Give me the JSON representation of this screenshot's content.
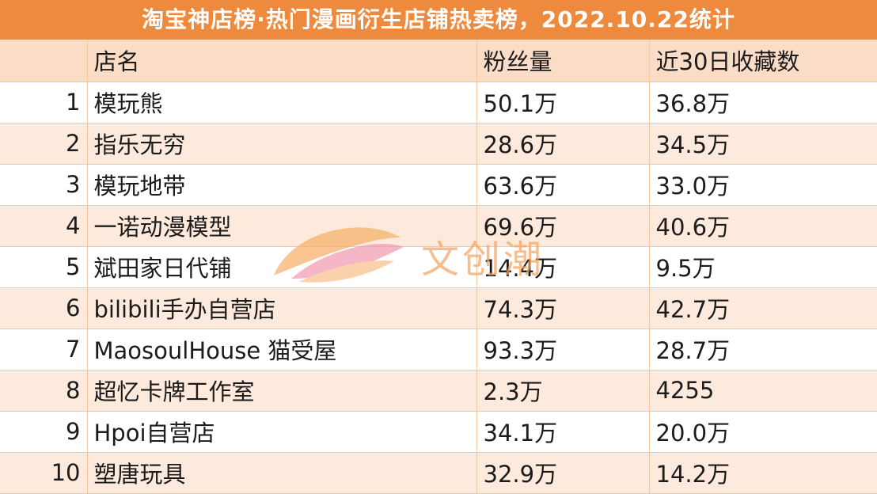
{
  "title": "淘宝神店榜·热门漫画衍生店铺热卖榜，2022.10.22统计",
  "columns": {
    "rank": "",
    "name": "店名",
    "fans": "粉丝量",
    "fav": "近30日收藏数"
  },
  "rows": [
    {
      "rank": "1",
      "name": "模玩熊",
      "fans": "50.1万",
      "fav": "36.8万"
    },
    {
      "rank": "2",
      "name": "指乐无穷",
      "fans": "28.6万",
      "fav": "34.5万"
    },
    {
      "rank": "3",
      "name": "模玩地带",
      "fans": "63.6万",
      "fav": "33.0万"
    },
    {
      "rank": "4",
      "name": "一诺动漫模型",
      "fans": "69.6万",
      "fav": "40.6万"
    },
    {
      "rank": "5",
      "name": "斌田家日代铺",
      "fans": "14.4万",
      "fav": "9.5万"
    },
    {
      "rank": "6",
      "name": "bilibili手办自营店",
      "fans": "74.3万",
      "fav": "42.7万"
    },
    {
      "rank": "7",
      "name": "MaosoulHouse 猫受屋",
      "fans": "93.3万",
      "fav": "28.7万"
    },
    {
      "rank": "8",
      "name": "超忆卡牌工作室",
      "fans": "2.3万",
      "fav": "4255"
    },
    {
      "rank": "9",
      "name": "Hpoi自营店",
      "fans": "34.1万",
      "fav": "20.0万"
    },
    {
      "rank": "10",
      "name": "塑唐玩具",
      "fans": "32.9万",
      "fav": "14.2万"
    }
  ],
  "watermark": {
    "text": "文创潮",
    "icon": "leaf-logo-icon"
  },
  "colors": {
    "title_bg": "#ee8a3d",
    "header_bg": "#fbdcc6",
    "stripe_bg": "#fdeadc",
    "border": "#f1c7a4",
    "watermark": "#f3a560"
  }
}
